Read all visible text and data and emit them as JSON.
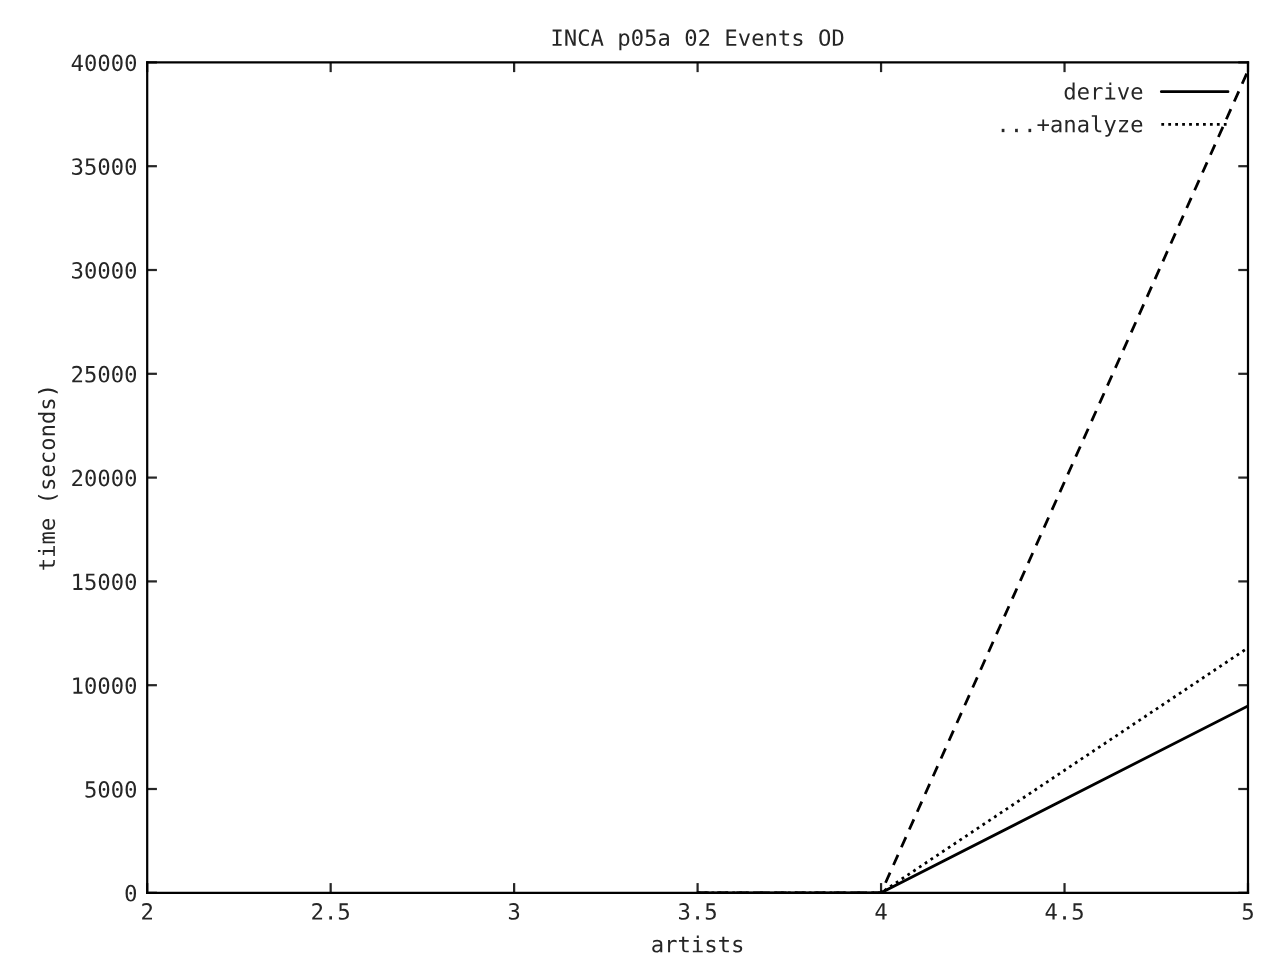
{
  "chart_data": {
    "type": "line",
    "title": "INCA p05a 02 Events OD",
    "xlabel": "artists",
    "ylabel": "time (seconds)",
    "xlim": [
      2,
      5
    ],
    "xticks": [
      2,
      2.5,
      3,
      3.5,
      4,
      4.5,
      5
    ],
    "ylim": [
      0,
      40000
    ],
    "yticks": [
      0,
      5000,
      10000,
      15000,
      20000,
      25000,
      30000,
      35000,
      40000
    ],
    "grid": false,
    "legend": "top right",
    "series": [
      {
        "name": "derive",
        "color": "#000000",
        "line_style": "solid",
        "x": [
          3.5,
          4,
          5
        ],
        "values": [
          0,
          0,
          9000
        ]
      },
      {
        "name": "...+analyze",
        "color": "#000000",
        "line_style": "dotted",
        "x": [
          3.5,
          4,
          5
        ],
        "values": [
          0,
          0,
          11800
        ]
      },
      {
        "color": "#000000",
        "line_style": "dashed",
        "x": [
          3.5,
          4,
          5
        ],
        "values": [
          0,
          0,
          39600
        ]
      }
    ]
  }
}
